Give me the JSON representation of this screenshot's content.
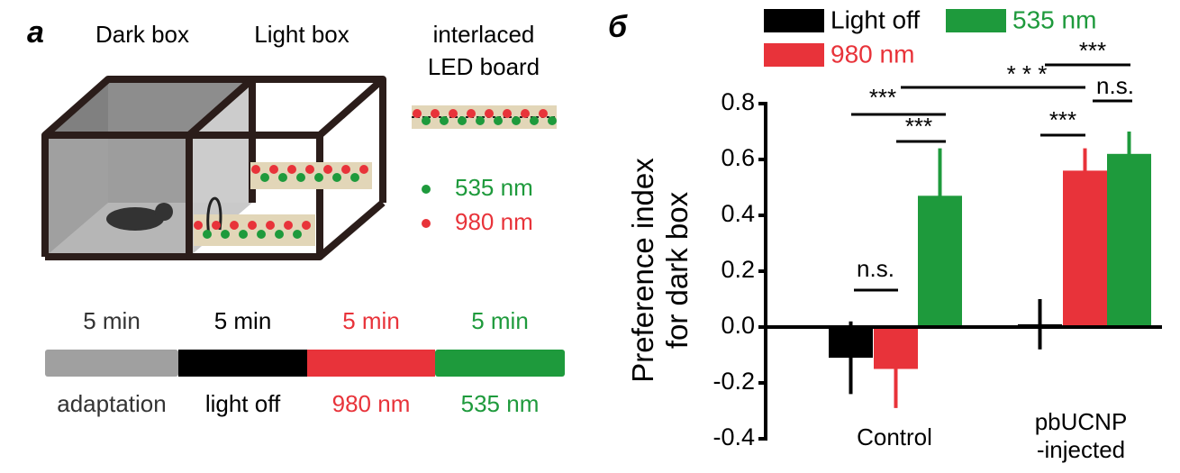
{
  "panel_a": {
    "label": "a",
    "dark_box": "Dark box",
    "light_box": "Light box",
    "board": [
      "interlaced",
      "LED board"
    ],
    "legend": [
      {
        "text": "535 nm",
        "color": "#1e9a3c"
      },
      {
        "text": "980 nm",
        "color": "#e8333a"
      }
    ],
    "timeline": [
      {
        "duration": "5 min",
        "label": "adaptation",
        "color": "#a0a0a0",
        "text_color": "#333333"
      },
      {
        "duration": "5 min",
        "label": "light off",
        "color": "#000000",
        "text_color": "#000000"
      },
      {
        "duration": "5 min",
        "label": "980 nm",
        "color": "#e8333a",
        "text_color": "#e8333a"
      },
      {
        "duration": "5 min",
        "label": "535 nm",
        "color": "#1e9a3c",
        "text_color": "#1e9a3c"
      }
    ]
  },
  "chart_data": {
    "type": "bar",
    "panel_label": "б",
    "ylabel": [
      "Preference index",
      "for dark box"
    ],
    "categories": [
      "Control",
      "pbUCNP\n-injected"
    ],
    "series": [
      {
        "name": "Light off",
        "color": "#000000",
        "values": [
          -0.11,
          0.01
        ],
        "errors": [
          0.13,
          0.09
        ]
      },
      {
        "name": "980 nm",
        "color": "#e8333a",
        "values": [
          -0.15,
          0.56
        ],
        "errors": [
          0.14,
          0.08
        ]
      },
      {
        "name": "535 nm",
        "color": "#1e9a3c",
        "values": [
          0.47,
          0.62
        ],
        "errors": [
          0.17,
          0.08
        ]
      }
    ],
    "ylim": [
      -0.4,
      0.8
    ],
    "yticks": [
      -0.4,
      -0.2,
      {
        "value": 0,
        "label": "0.0"
      },
      0.2,
      0.4,
      0.6,
      0.8
    ],
    "annotations": [
      "n.s.",
      "***",
      "***",
      "* * *",
      "***",
      "n.s.",
      "***"
    ]
  }
}
